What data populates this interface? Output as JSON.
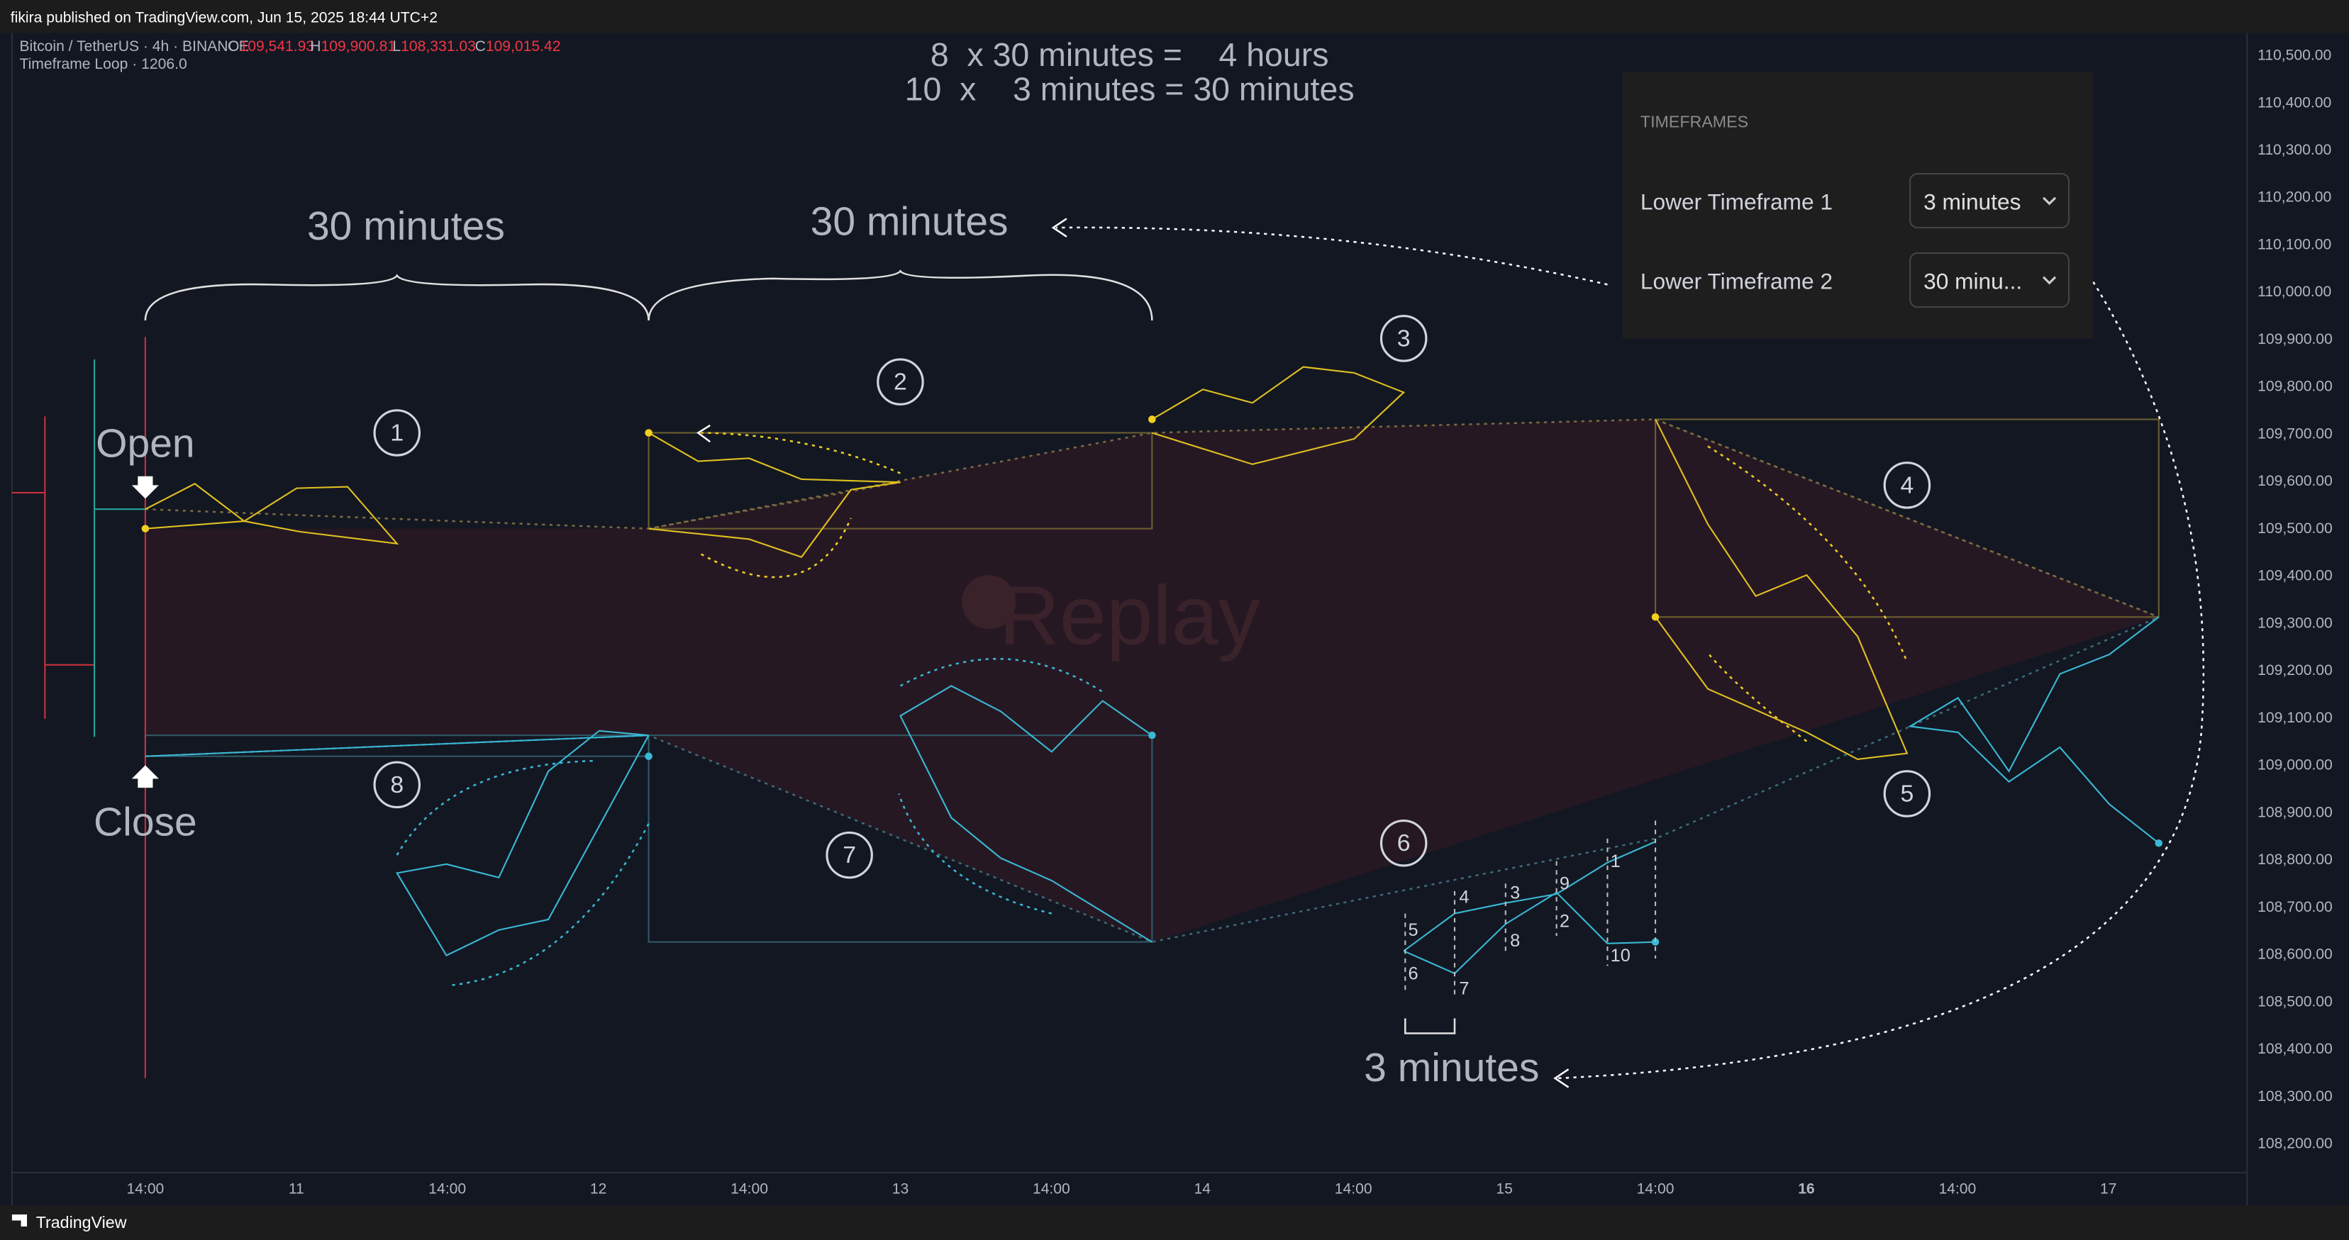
{
  "header": {
    "text": "fikira published on TradingView.com, Jun 15, 2025 18:44 UTC+2"
  },
  "legend": {
    "symbol": "Bitcoin / TetherUS · 4h · BINANCE",
    "ohlc": [
      {
        "label": "O",
        "value": "109,541.93"
      },
      {
        "label": "H",
        "value": "109,900.81"
      },
      {
        "label": "L",
        "value": "108,331.03"
      },
      {
        "label": "C",
        "value": "109,015.42"
      }
    ],
    "indicator": "Timeframe Loop · 1206.0"
  },
  "annotations": {
    "formula": [
      "8  x 30 minutes =    4 hours",
      "10  x    3 minutes = 30 minutes"
    ],
    "brace_labels": [
      "30 minutes",
      "30 minutes"
    ],
    "open": "Open",
    "close": "Close",
    "lower_label": "3 minutes",
    "circles": [
      "1",
      "2",
      "3",
      "4",
      "5",
      "6",
      "7",
      "8"
    ],
    "small_numbers": [
      "5",
      "6",
      "4",
      "7",
      "3",
      "8",
      "9",
      "2",
      "1",
      "10"
    ]
  },
  "watermark": "Replay",
  "panel": {
    "title": "TIMEFRAMES",
    "rows": [
      {
        "label": "Lower Timeframe 1",
        "value": "3 minutes"
      },
      {
        "label": "Lower Timeframe 2",
        "value": "30 minu..."
      }
    ]
  },
  "price_axis": [
    "110,500.00",
    "110,400.00",
    "110,300.00",
    "110,200.00",
    "110,100.00",
    "110,000.00",
    "109,900.00",
    "109,800.00",
    "109,700.00",
    "109,600.00",
    "109,500.00",
    "109,400.00",
    "109,300.00",
    "109,200.00",
    "109,100.00",
    "109,000.00",
    "108,900.00",
    "108,800.00",
    "108,700.00",
    "108,600.00",
    "108,500.00",
    "108,400.00",
    "108,300.00",
    "108,200.00"
  ],
  "time_axis": [
    "14:00",
    "11",
    "14:00",
    "12",
    "14:00",
    "13",
    "14:00",
    "14",
    "14:00",
    "15",
    "14:00",
    "16",
    "14:00",
    "17"
  ],
  "footer": {
    "brand": "TradingView"
  }
}
